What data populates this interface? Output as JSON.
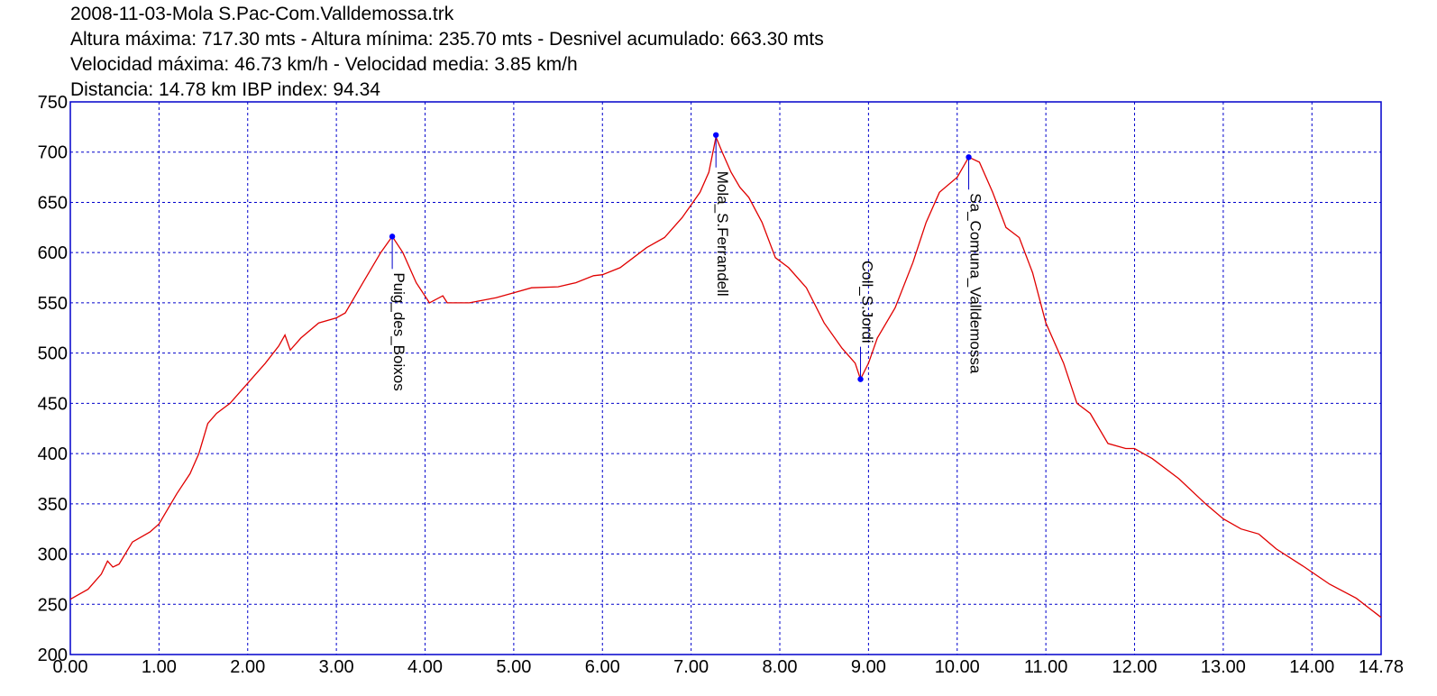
{
  "header": {
    "filename": "2008-11-03-Mola S.Pac-Com.Valldemossa.trk",
    "line2": "Altura máxima: 717.30 mts - Altura mínima: 235.70 mts - Desnivel acumulado: 663.30 mts",
    "line3": "Velocidad máxima: 46.73 km/h - Velocidad media: 3.85 km/h",
    "line4": "Distancia: 14.78 km IBP index: 94.34"
  },
  "colors": {
    "profile": "#e00000",
    "grid": "#0000cc",
    "frame": "#0000cc",
    "waypoint": "#0000ff",
    "leader": "#0000cc"
  },
  "chart_data": {
    "type": "line",
    "title": "",
    "xlabel": "",
    "ylabel": "",
    "xlim": [
      0,
      14.78
    ],
    "ylim": [
      200,
      750
    ],
    "grid": true,
    "x_ticks": [
      0,
      1,
      2,
      3,
      4,
      5,
      6,
      7,
      8,
      9,
      10,
      11,
      12,
      13,
      14,
      14.78
    ],
    "x_tick_labels": [
      "0.00",
      "1.00",
      "2.00",
      "3.00",
      "4.00",
      "5.00",
      "6.00",
      "7.00",
      "8.00",
      "9.00",
      "10.00",
      "11.00",
      "12.00",
      "13.00",
      "14.00",
      "14.78"
    ],
    "y_ticks": [
      200,
      250,
      300,
      350,
      400,
      450,
      500,
      550,
      600,
      650,
      700,
      750
    ],
    "y_tick_labels": [
      "200",
      "250",
      "300",
      "350",
      "400",
      "450",
      "500",
      "550",
      "600",
      "650",
      "700",
      "750"
    ],
    "series": [
      {
        "points": [
          [
            0.0,
            255
          ],
          [
            0.2,
            265
          ],
          [
            0.35,
            280
          ],
          [
            0.42,
            293
          ],
          [
            0.48,
            287
          ],
          [
            0.55,
            290
          ],
          [
            0.7,
            312
          ],
          [
            0.9,
            322
          ],
          [
            1.0,
            330
          ],
          [
            1.2,
            360
          ],
          [
            1.35,
            380
          ],
          [
            1.45,
            400
          ],
          [
            1.55,
            430
          ],
          [
            1.65,
            440
          ],
          [
            1.8,
            450
          ],
          [
            2.0,
            470
          ],
          [
            2.2,
            490
          ],
          [
            2.35,
            507
          ],
          [
            2.42,
            518
          ],
          [
            2.48,
            503
          ],
          [
            2.6,
            515
          ],
          [
            2.8,
            530
          ],
          [
            3.0,
            535
          ],
          [
            3.1,
            540
          ],
          [
            3.3,
            570
          ],
          [
            3.5,
            600
          ],
          [
            3.63,
            616
          ],
          [
            3.75,
            600
          ],
          [
            3.9,
            570
          ],
          [
            4.05,
            550
          ],
          [
            4.2,
            557
          ],
          [
            4.25,
            550
          ],
          [
            4.5,
            550
          ],
          [
            4.8,
            555
          ],
          [
            5.0,
            560
          ],
          [
            5.2,
            565
          ],
          [
            5.5,
            566
          ],
          [
            5.7,
            570
          ],
          [
            5.9,
            577
          ],
          [
            6.0,
            578
          ],
          [
            6.2,
            585
          ],
          [
            6.5,
            605
          ],
          [
            6.7,
            615
          ],
          [
            6.9,
            635
          ],
          [
            7.1,
            660
          ],
          [
            7.2,
            680
          ],
          [
            7.28,
            715
          ],
          [
            7.35,
            700
          ],
          [
            7.45,
            680
          ],
          [
            7.55,
            665
          ],
          [
            7.65,
            655
          ],
          [
            7.8,
            630
          ],
          [
            7.95,
            595
          ],
          [
            8.1,
            585
          ],
          [
            8.3,
            565
          ],
          [
            8.5,
            530
          ],
          [
            8.7,
            505
          ],
          [
            8.85,
            490
          ],
          [
            8.91,
            474
          ],
          [
            9.0,
            490
          ],
          [
            9.1,
            515
          ],
          [
            9.3,
            545
          ],
          [
            9.5,
            590
          ],
          [
            9.65,
            630
          ],
          [
            9.8,
            660
          ],
          [
            10.0,
            675
          ],
          [
            10.13,
            695
          ],
          [
            10.25,
            690
          ],
          [
            10.4,
            660
          ],
          [
            10.55,
            625
          ],
          [
            10.7,
            615
          ],
          [
            10.85,
            580
          ],
          [
            11.0,
            530
          ],
          [
            11.2,
            490
          ],
          [
            11.35,
            450
          ],
          [
            11.5,
            440
          ],
          [
            11.7,
            410
          ],
          [
            11.9,
            405
          ],
          [
            12.0,
            405
          ],
          [
            12.2,
            395
          ],
          [
            12.5,
            375
          ],
          [
            12.8,
            350
          ],
          [
            13.0,
            335
          ],
          [
            13.2,
            325
          ],
          [
            13.4,
            320
          ],
          [
            13.6,
            305
          ],
          [
            13.9,
            288
          ],
          [
            14.2,
            270
          ],
          [
            14.5,
            256
          ],
          [
            14.78,
            237
          ]
        ]
      }
    ],
    "waypoints": [
      {
        "x": 3.63,
        "y": 616,
        "label": "Puig_des_Boixos",
        "label_side": "below"
      },
      {
        "x": 7.28,
        "y": 717,
        "label": "Mola_S.Ferrandell",
        "label_side": "below"
      },
      {
        "x": 8.91,
        "y": 474,
        "label": "Coll_S.Jordi",
        "label_side": "above"
      },
      {
        "x": 10.13,
        "y": 695,
        "label": "Sa_Comuna_Valldemossa",
        "label_side": "below"
      }
    ]
  }
}
